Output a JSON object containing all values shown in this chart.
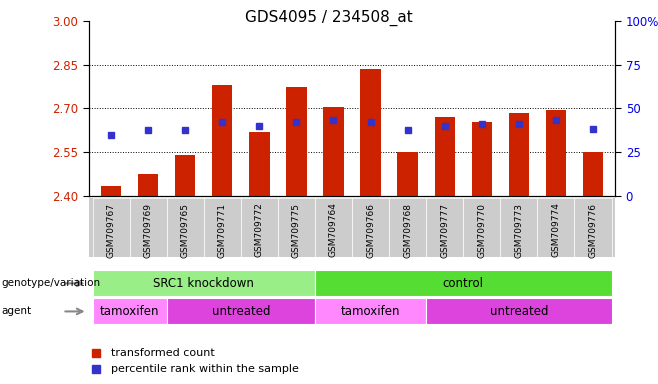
{
  "title": "GDS4095 / 234508_at",
  "samples": [
    "GSM709767",
    "GSM709769",
    "GSM709765",
    "GSM709771",
    "GSM709772",
    "GSM709775",
    "GSM709764",
    "GSM709766",
    "GSM709768",
    "GSM709777",
    "GSM709770",
    "GSM709773",
    "GSM709774",
    "GSM709776"
  ],
  "bar_values": [
    2.435,
    2.475,
    2.54,
    2.78,
    2.62,
    2.775,
    2.705,
    2.835,
    2.55,
    2.67,
    2.655,
    2.685,
    2.695,
    2.55
  ],
  "dot_values": [
    2.61,
    2.625,
    2.625,
    2.655,
    2.64,
    2.655,
    2.66,
    2.655,
    2.625,
    2.64,
    2.645,
    2.645,
    2.66,
    2.63
  ],
  "bar_base": 2.4,
  "ymin": 2.4,
  "ymax": 3.0,
  "yticks": [
    2.4,
    2.55,
    2.7,
    2.85,
    3.0
  ],
  "right_yticks": [
    0,
    25,
    50,
    75,
    100
  ],
  "right_yticklabels": [
    "0",
    "25",
    "50",
    "75",
    "100%"
  ],
  "bar_color": "#cc2200",
  "dot_color": "#3333cc",
  "plot_bg": "#ffffff",
  "genotype_groups": [
    {
      "label": "SRC1 knockdown",
      "start": 0,
      "end": 6,
      "color": "#99ee88"
    },
    {
      "label": "control",
      "start": 6,
      "end": 14,
      "color": "#55dd33"
    }
  ],
  "agent_groups": [
    {
      "label": "tamoxifen",
      "start": 0,
      "end": 2,
      "color": "#ff88ff"
    },
    {
      "label": "untreated",
      "start": 2,
      "end": 6,
      "color": "#dd44dd"
    },
    {
      "label": "tamoxifen",
      "start": 6,
      "end": 9,
      "color": "#ff88ff"
    },
    {
      "label": "untreated",
      "start": 9,
      "end": 14,
      "color": "#dd44dd"
    }
  ],
  "legend_items": [
    {
      "label": "transformed count",
      "color": "#cc2200"
    },
    {
      "label": "percentile rank within the sample",
      "color": "#3333cc"
    }
  ],
  "ylabel_color_left": "#cc2200",
  "ylabel_color_right": "#0000ee",
  "title_fontsize": 11,
  "xtick_bg": "#cccccc",
  "row_label_color": "#444444"
}
